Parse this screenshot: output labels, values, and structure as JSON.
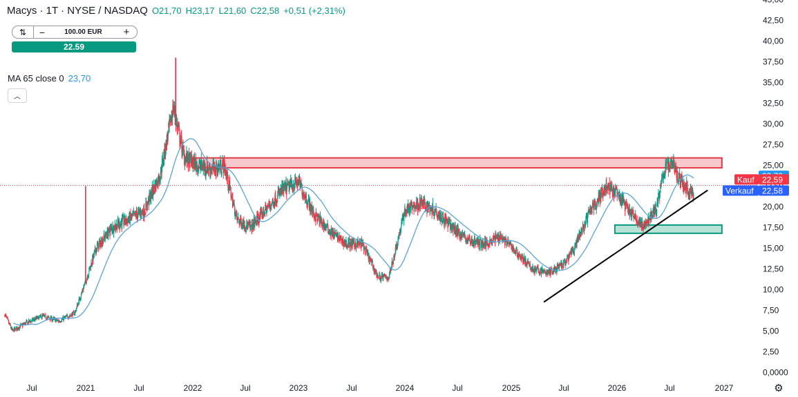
{
  "legend": {
    "symbol": "Macys · 1T · NYSE / NASDAQ",
    "open": "O21,70",
    "high": "H23,17",
    "low": "L21,60",
    "close": "C22,58",
    "change": "+0,51 (+2,31%)"
  },
  "order": {
    "quantity": "100.00 EUR",
    "buy_price": "22.59",
    "swap_icon": "swap-icon",
    "minus_icon": "minus-icon",
    "plus_icon": "plus-icon"
  },
  "indicator": {
    "label": "MA 65 close 0",
    "value": "23,70"
  },
  "price_tags": {
    "ma": {
      "value": "23,70",
      "color": "#2196f3"
    },
    "kauf": {
      "label": "Kauf",
      "value": "22,59",
      "color": "#f23645"
    },
    "verkauf": {
      "label": "Verkauf",
      "value": "22,58",
      "color": "#2962ff"
    }
  },
  "colors": {
    "up": "#089981",
    "down": "#f23645",
    "ma_line": "#5ba3d9",
    "resistance_fill": "#f8c9cc",
    "resistance_border": "#e53945",
    "support_fill": "#b6e3d5",
    "support_border": "#089981",
    "trendline": "#000000"
  },
  "chart_data": {
    "type": "candlestick",
    "y_axis": {
      "min": 0,
      "max": 45,
      "ticks": [
        "0,0000",
        "2,50",
        "5,00",
        "7,50",
        "10,00",
        "12,50",
        "15,00",
        "17,50",
        "20,00",
        "22,50",
        "25,00",
        "27,50",
        "30,00",
        "32,50",
        "35,00",
        "37,50",
        "40,00",
        "42,50",
        "45,00"
      ]
    },
    "x_axis": {
      "start": 2020.25,
      "end": 2027.2,
      "ticks": [
        {
          "label": "Jul",
          "t": 2020.5
        },
        {
          "label": "2021",
          "t": 2021.0
        },
        {
          "label": "Jul",
          "t": 2021.5
        },
        {
          "label": "2022",
          "t": 2022.0
        },
        {
          "label": "Jul",
          "t": 2022.5
        },
        {
          "label": "2023",
          "t": 2023.0
        },
        {
          "label": "Jul",
          "t": 2023.5
        },
        {
          "label": "2024",
          "t": 2024.0
        },
        {
          "label": "Jul",
          "t": 2024.5
        },
        {
          "label": "2025",
          "t": 2025.0
        },
        {
          "label": "Jul",
          "t": 2025.5
        },
        {
          "label": "2026",
          "t": 2026.0
        },
        {
          "label": "Jul",
          "t": 2026.5
        },
        {
          "label": "2027",
          "t": 2027.0
        }
      ]
    },
    "price_path": [
      [
        2020.25,
        7.0
      ],
      [
        2020.32,
        5.0
      ],
      [
        2020.45,
        6.0
      ],
      [
        2020.6,
        6.8
      ],
      [
        2020.75,
        6.2
      ],
      [
        2020.9,
        7.2
      ],
      [
        2021.0,
        11.0
      ],
      [
        2021.1,
        15.0
      ],
      [
        2021.25,
        17.5
      ],
      [
        2021.4,
        18.5
      ],
      [
        2021.55,
        19.5
      ],
      [
        2021.7,
        24.0
      ],
      [
        2021.82,
        32.0
      ],
      [
        2021.92,
        26.0
      ],
      [
        2022.05,
        25.0
      ],
      [
        2022.2,
        24.5
      ],
      [
        2022.3,
        25.0
      ],
      [
        2022.42,
        18.5
      ],
      [
        2022.55,
        17.5
      ],
      [
        2022.65,
        19.0
      ],
      [
        2022.85,
        22.0
      ],
      [
        2023.0,
        23.0
      ],
      [
        2023.15,
        19.0
      ],
      [
        2023.3,
        17.0
      ],
      [
        2023.45,
        15.5
      ],
      [
        2023.6,
        15.5
      ],
      [
        2023.75,
        11.5
      ],
      [
        2023.85,
        11.5
      ],
      [
        2024.0,
        19.5
      ],
      [
        2024.15,
        20.5
      ],
      [
        2024.3,
        19.5
      ],
      [
        2024.45,
        17.5
      ],
      [
        2024.6,
        16.0
      ],
      [
        2024.75,
        15.5
      ],
      [
        2024.9,
        16.5
      ],
      [
        2025.05,
        14.5
      ],
      [
        2025.2,
        12.5
      ],
      [
        2025.35,
        12.0
      ],
      [
        2025.5,
        13.0
      ],
      [
        2025.6,
        15.0
      ],
      [
        2025.75,
        19.5
      ],
      [
        2025.9,
        22.5
      ],
      [
        2026.0,
        21.5
      ],
      [
        2026.12,
        19.5
      ],
      [
        2026.25,
        17.5
      ],
      [
        2026.38,
        20.0
      ],
      [
        2026.45,
        24.5
      ],
      [
        2026.53,
        25.5
      ],
      [
        2026.6,
        23.0
      ],
      [
        2026.72,
        21.5
      ]
    ],
    "spikes": [
      {
        "t": 2021.0,
        "high": 22.5
      },
      {
        "t": 2021.84,
        "high": 38.0
      }
    ],
    "ma_period": 65,
    "current_price": 22.58,
    "resistance_zone": {
      "t0": 2022.0,
      "t1": 2026.98,
      "low": 24.7,
      "high": 25.9
    },
    "support_zone": {
      "t0": 2025.98,
      "t1": 2026.98,
      "low": 16.8,
      "high": 17.8
    },
    "trendline": {
      "t0": 2025.31,
      "y0": 8.5,
      "t1": 2026.85,
      "y1": 22.0
    }
  }
}
